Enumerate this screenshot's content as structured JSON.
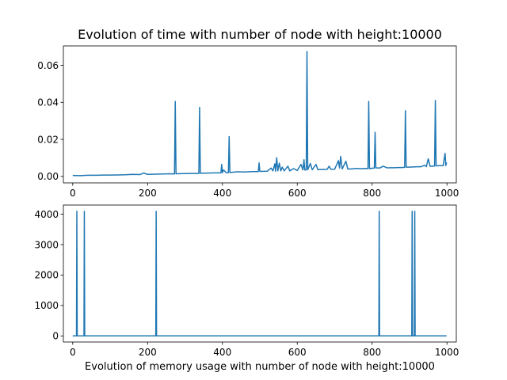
{
  "chart_data": [
    {
      "type": "line",
      "title": "Evolution of time with number of node with height:10000",
      "xlabel": "",
      "ylabel": "",
      "xlim": [
        -25,
        1025
      ],
      "ylim": [
        -0.0035,
        0.0705
      ],
      "xticks": [
        0,
        200,
        400,
        600,
        800,
        1000
      ],
      "xtick_labels": [
        "0",
        "200",
        "400",
        "600",
        "800",
        "1000"
      ],
      "yticks": [
        0.0,
        0.02,
        0.04,
        0.06
      ],
      "ytick_labels": [
        "0.00",
        "0.02",
        "0.04",
        "0.06"
      ],
      "grid": false,
      "color": "#1f77b4",
      "series": [
        {
          "points": [
            [
              0,
              0.0005
            ],
            [
              20,
              0.0004
            ],
            [
              40,
              0.0006
            ],
            [
              60,
              0.0006
            ],
            [
              80,
              0.0007
            ],
            [
              100,
              0.0007
            ],
            [
              120,
              0.0008
            ],
            [
              140,
              0.0009
            ],
            [
              160,
              0.0011
            ],
            [
              180,
              0.001
            ],
            [
              190,
              0.0018
            ],
            [
              200,
              0.0011
            ],
            [
              220,
              0.0012
            ],
            [
              240,
              0.0013
            ],
            [
              260,
              0.0014
            ],
            [
              272,
              0.0013
            ],
            [
              274,
              0.0405
            ],
            [
              276,
              0.0014
            ],
            [
              300,
              0.0015
            ],
            [
              320,
              0.0016
            ],
            [
              337,
              0.0016
            ],
            [
              339,
              0.0373
            ],
            [
              341,
              0.0017
            ],
            [
              360,
              0.0018
            ],
            [
              380,
              0.0019
            ],
            [
              396,
              0.0019
            ],
            [
              398,
              0.0065
            ],
            [
              400,
              0.002
            ],
            [
              403,
              0.0035
            ],
            [
              410,
              0.002
            ],
            [
              416,
              0.002
            ],
            [
              418,
              0.0215
            ],
            [
              420,
              0.0021
            ],
            [
              440,
              0.0025
            ],
            [
              460,
              0.0024
            ],
            [
              480,
              0.0026
            ],
            [
              496,
              0.0026
            ],
            [
              498,
              0.0073
            ],
            [
              500,
              0.0027
            ],
            [
              520,
              0.0028
            ],
            [
              530,
              0.0045
            ],
            [
              535,
              0.003
            ],
            [
              540,
              0.0068
            ],
            [
              542,
              0.0028
            ],
            [
              545,
              0.0101
            ],
            [
              548,
              0.003
            ],
            [
              552,
              0.0072
            ],
            [
              556,
              0.003
            ],
            [
              560,
              0.005
            ],
            [
              565,
              0.003
            ],
            [
              575,
              0.0055
            ],
            [
              580,
              0.003
            ],
            [
              590,
              0.0042
            ],
            [
              600,
              0.0032
            ],
            [
              610,
              0.0065
            ],
            [
              615,
              0.0035
            ],
            [
              618,
              0.009
            ],
            [
              620,
              0.0035
            ],
            [
              624,
              0.0035
            ],
            [
              626,
              0.0675
            ],
            [
              628,
              0.0036
            ],
            [
              635,
              0.007
            ],
            [
              640,
              0.0036
            ],
            [
              650,
              0.0065
            ],
            [
              655,
              0.0036
            ],
            [
              660,
              0.0037
            ],
            [
              680,
              0.0038
            ],
            [
              685,
              0.0055
            ],
            [
              690,
              0.0038
            ],
            [
              700,
              0.0039
            ],
            [
              710,
              0.0085
            ],
            [
              713,
              0.0045
            ],
            [
              716,
              0.0108
            ],
            [
              720,
              0.004
            ],
            [
              730,
              0.0082
            ],
            [
              735,
              0.004
            ],
            [
              740,
              0.004
            ],
            [
              760,
              0.0043
            ],
            [
              770,
              0.0041
            ],
            [
              780,
              0.0043
            ],
            [
              789,
              0.0042
            ],
            [
              791,
              0.0405
            ],
            [
              793,
              0.0042
            ],
            [
              800,
              0.0044
            ],
            [
              806,
              0.0045
            ],
            [
              808,
              0.0238
            ],
            [
              810,
              0.0046
            ],
            [
              820,
              0.0045
            ],
            [
              830,
              0.0055
            ],
            [
              840,
              0.0046
            ],
            [
              850,
              0.0047
            ],
            [
              860,
              0.0047
            ],
            [
              870,
              0.0048
            ],
            [
              880,
              0.0048
            ],
            [
              887,
              0.0049
            ],
            [
              889,
              0.0355
            ],
            [
              891,
              0.005
            ],
            [
              900,
              0.005
            ],
            [
              910,
              0.0051
            ],
            [
              920,
              0.0052
            ],
            [
              930,
              0.0052
            ],
            [
              940,
              0.006
            ],
            [
              945,
              0.0053
            ],
            [
              950,
              0.0095
            ],
            [
              955,
              0.0055
            ],
            [
              960,
              0.0055
            ],
            [
              967,
              0.0056
            ],
            [
              969,
              0.041
            ],
            [
              971,
              0.0057
            ],
            [
              980,
              0.0058
            ],
            [
              990,
              0.0058
            ],
            [
              995,
              0.0125
            ],
            [
              997,
              0.0058
            ],
            [
              999,
              0.0075
            ]
          ]
        }
      ]
    },
    {
      "type": "line",
      "title": "",
      "xlabel": "Evolution of memory usage with number of node with height:10000",
      "ylabel": "",
      "xlim": [
        -25,
        1025
      ],
      "ylim": [
        -200,
        4300
      ],
      "xticks": [
        0,
        200,
        400,
        600,
        800,
        1000
      ],
      "xtick_labels": [
        "0",
        "200",
        "400",
        "600",
        "800",
        "1000"
      ],
      "yticks": [
        0,
        1000,
        2000,
        3000,
        4000
      ],
      "ytick_labels": [
        "0",
        "1000",
        "2000",
        "3000",
        "4000"
      ],
      "grid": false,
      "color": "#1f77b4",
      "series": [
        {
          "points": [
            [
              0,
              0
            ],
            [
              10,
              0
            ],
            [
              11,
              4096
            ],
            [
              12,
              0
            ],
            [
              30,
              0
            ],
            [
              31,
              4096
            ],
            [
              32,
              0
            ],
            [
              222,
              0
            ],
            [
              223,
              4096
            ],
            [
              224,
              0
            ],
            [
              818,
              0
            ],
            [
              819,
              4096
            ],
            [
              820,
              0
            ],
            [
              906,
              0
            ],
            [
              907,
              4096
            ],
            [
              908,
              0
            ],
            [
              913,
              0
            ],
            [
              914,
              4096
            ],
            [
              915,
              0
            ],
            [
              999,
              0
            ]
          ]
        }
      ]
    }
  ]
}
